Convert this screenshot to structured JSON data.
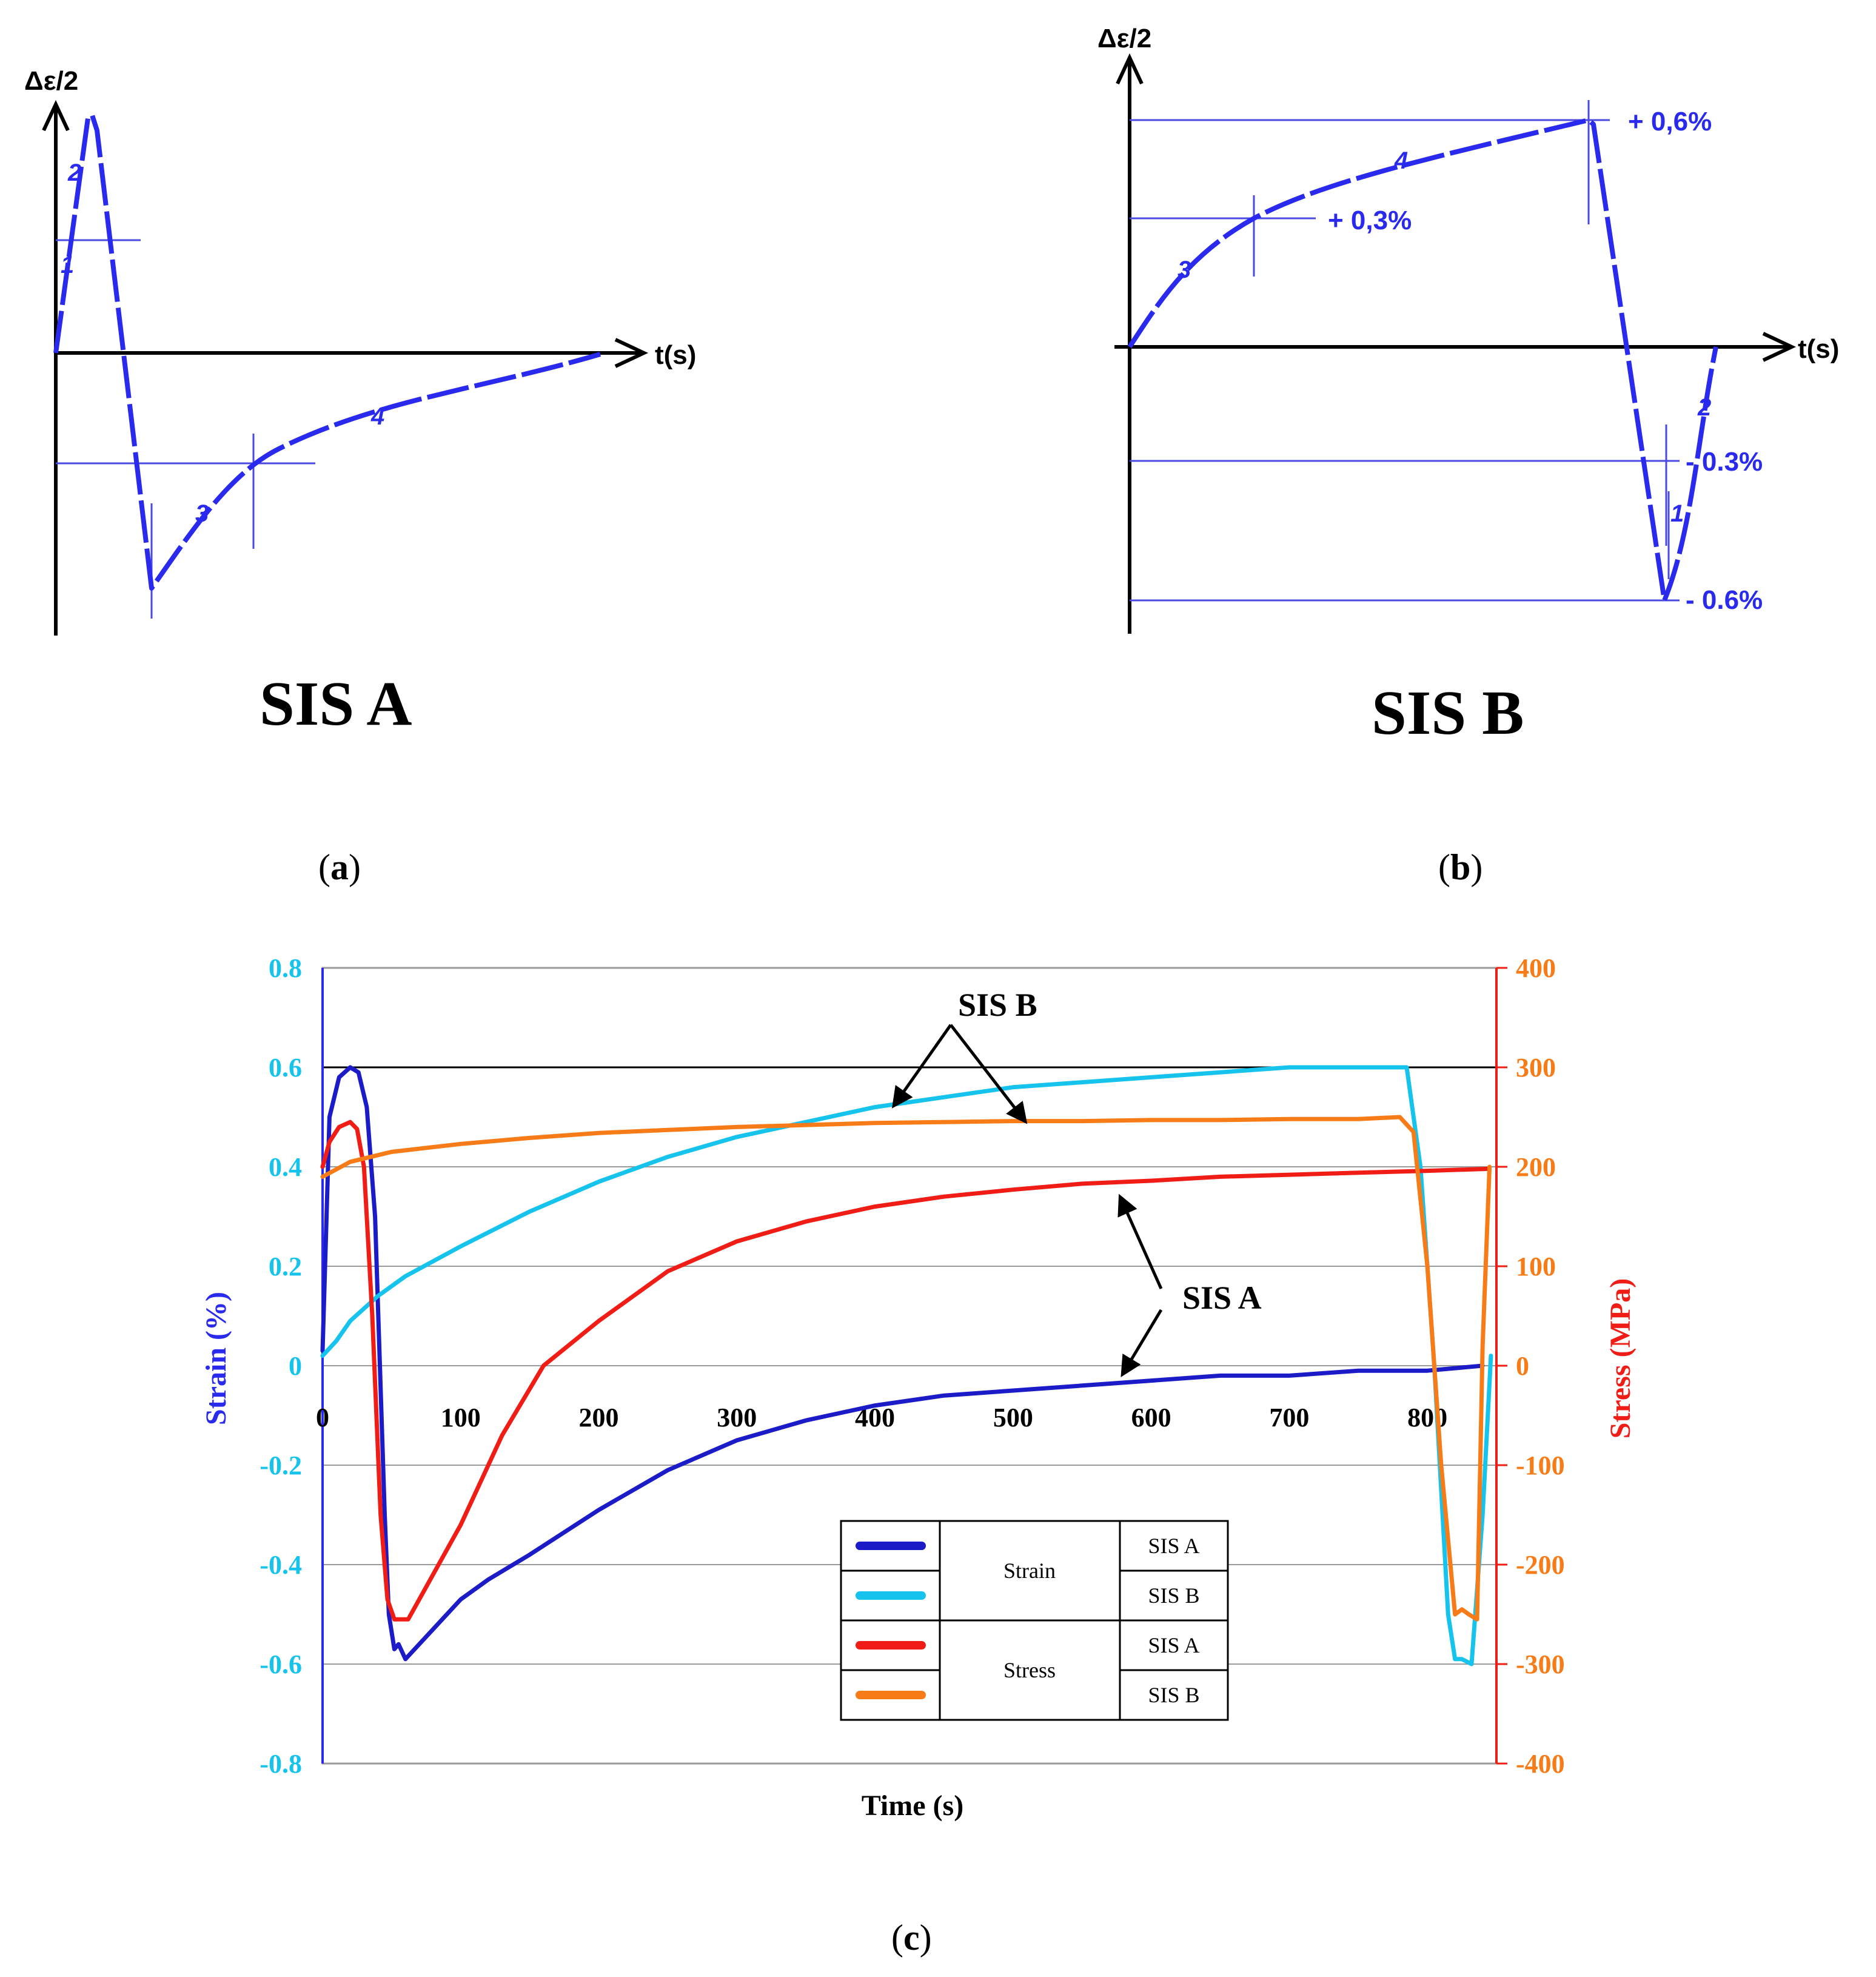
{
  "panel_a": {
    "tag_open": "(",
    "tag_letter": "a",
    "tag_close": ")",
    "caption": "SIS A",
    "y_label": "Δε/2",
    "x_label": "t(s)",
    "segments": [
      "1",
      "2",
      "3",
      "4"
    ],
    "color": "#2a2aee"
  },
  "panel_b": {
    "tag_open": "(",
    "tag_letter": "b",
    "tag_close": ")",
    "caption": "SIS B",
    "y_label": "Δε/2",
    "x_label": "t(s)",
    "segments": [
      "1",
      "2",
      "3",
      "4"
    ],
    "levels": [
      "+ 0,6%",
      "+ 0,3%",
      "- 0.3%",
      "- 0.6%"
    ],
    "color": "#2a2aee"
  },
  "panel_c": {
    "tag_open": "(",
    "tag_letter": "c",
    "tag_close": ")"
  },
  "chart_data": {
    "type": "line",
    "xlabel": "Time (s)",
    "ylabel_left": "Strain (%)",
    "ylabel_right": "Stress (MPa)",
    "xlim": [
      0,
      850
    ],
    "ylim_left": [
      -0.8,
      0.8
    ],
    "ylim_right": [
      -400,
      400
    ],
    "x_ticks": [
      "0",
      "100",
      "200",
      "300",
      "400",
      "500",
      "600",
      "700",
      "800"
    ],
    "y_left_ticks": [
      "0.8",
      "0.6",
      "0.4",
      "0.2",
      "0",
      "-0.2",
      "-0.4",
      "-0.6",
      "-0.8"
    ],
    "y_right_ticks": [
      "400",
      "300",
      "200",
      "100",
      "0",
      "-100",
      "-200",
      "-300",
      "-400"
    ],
    "annotations": [
      "SIS B",
      "SIS A"
    ],
    "legend": {
      "groups": [
        "Strain",
        "Stress"
      ],
      "entries": [
        "SIS A",
        "SIS B",
        "SIS A",
        "SIS B"
      ]
    },
    "series": [
      {
        "name": "Strain SIS A",
        "axis": "left",
        "color": "#1b1bc8",
        "x": [
          0,
          5,
          12,
          20,
          26,
          32,
          38,
          45,
          48,
          52,
          55,
          60,
          80,
          100,
          120,
          150,
          200,
          250,
          300,
          350,
          400,
          450,
          500,
          550,
          600,
          650,
          700,
          750,
          800,
          840
        ],
        "y": [
          0.03,
          0.5,
          0.58,
          0.6,
          0.59,
          0.52,
          0.3,
          -0.3,
          -0.5,
          -0.57,
          -0.56,
          -0.59,
          -0.53,
          -0.47,
          -0.43,
          -0.38,
          -0.29,
          -0.21,
          -0.15,
          -0.11,
          -0.08,
          -0.06,
          -0.05,
          -0.04,
          -0.03,
          -0.02,
          -0.02,
          -0.01,
          -0.01,
          0.0
        ]
      },
      {
        "name": "Strain SIS B",
        "axis": "left",
        "color": "#16c3ec",
        "x": [
          0,
          10,
          20,
          40,
          60,
          100,
          150,
          200,
          250,
          300,
          350,
          400,
          450,
          500,
          550,
          600,
          650,
          700,
          750,
          785,
          795,
          805,
          815,
          820,
          825,
          832,
          840,
          846
        ],
        "y": [
          0.02,
          0.05,
          0.09,
          0.14,
          0.18,
          0.24,
          0.31,
          0.37,
          0.42,
          0.46,
          0.49,
          0.52,
          0.54,
          0.56,
          0.57,
          0.58,
          0.59,
          0.6,
          0.6,
          0.6,
          0.4,
          0.0,
          -0.5,
          -0.59,
          -0.59,
          -0.6,
          -0.3,
          0.02
        ]
      },
      {
        "name": "Stress SIS A",
        "axis": "right",
        "color": "#f01d16",
        "x": [
          0,
          5,
          12,
          20,
          25,
          30,
          36,
          42,
          47,
          52,
          57,
          62,
          80,
          100,
          130,
          160,
          200,
          250,
          300,
          350,
          400,
          450,
          500,
          550,
          600,
          650,
          700,
          750,
          800,
          845
        ],
        "y": [
          200,
          225,
          240,
          245,
          238,
          200,
          50,
          -150,
          -235,
          -255,
          -255,
          -255,
          -210,
          -160,
          -70,
          0,
          45,
          95,
          125,
          145,
          160,
          170,
          177,
          183,
          186,
          190,
          192,
          194,
          196,
          198
        ]
      },
      {
        "name": "Stress SIS B",
        "axis": "right",
        "color": "#f77b16",
        "x": [
          0,
          20,
          50,
          100,
          150,
          200,
          250,
          300,
          350,
          400,
          450,
          500,
          550,
          600,
          650,
          700,
          750,
          780,
          790,
          800,
          810,
          820,
          825,
          830,
          836,
          840,
          845
        ],
        "y": [
          190,
          205,
          215,
          223,
          229,
          234,
          237,
          240,
          242,
          244,
          245,
          246,
          246,
          247,
          247,
          248,
          248,
          250,
          235,
          100,
          -100,
          -250,
          -245,
          -250,
          -255,
          20,
          200
        ]
      }
    ]
  }
}
